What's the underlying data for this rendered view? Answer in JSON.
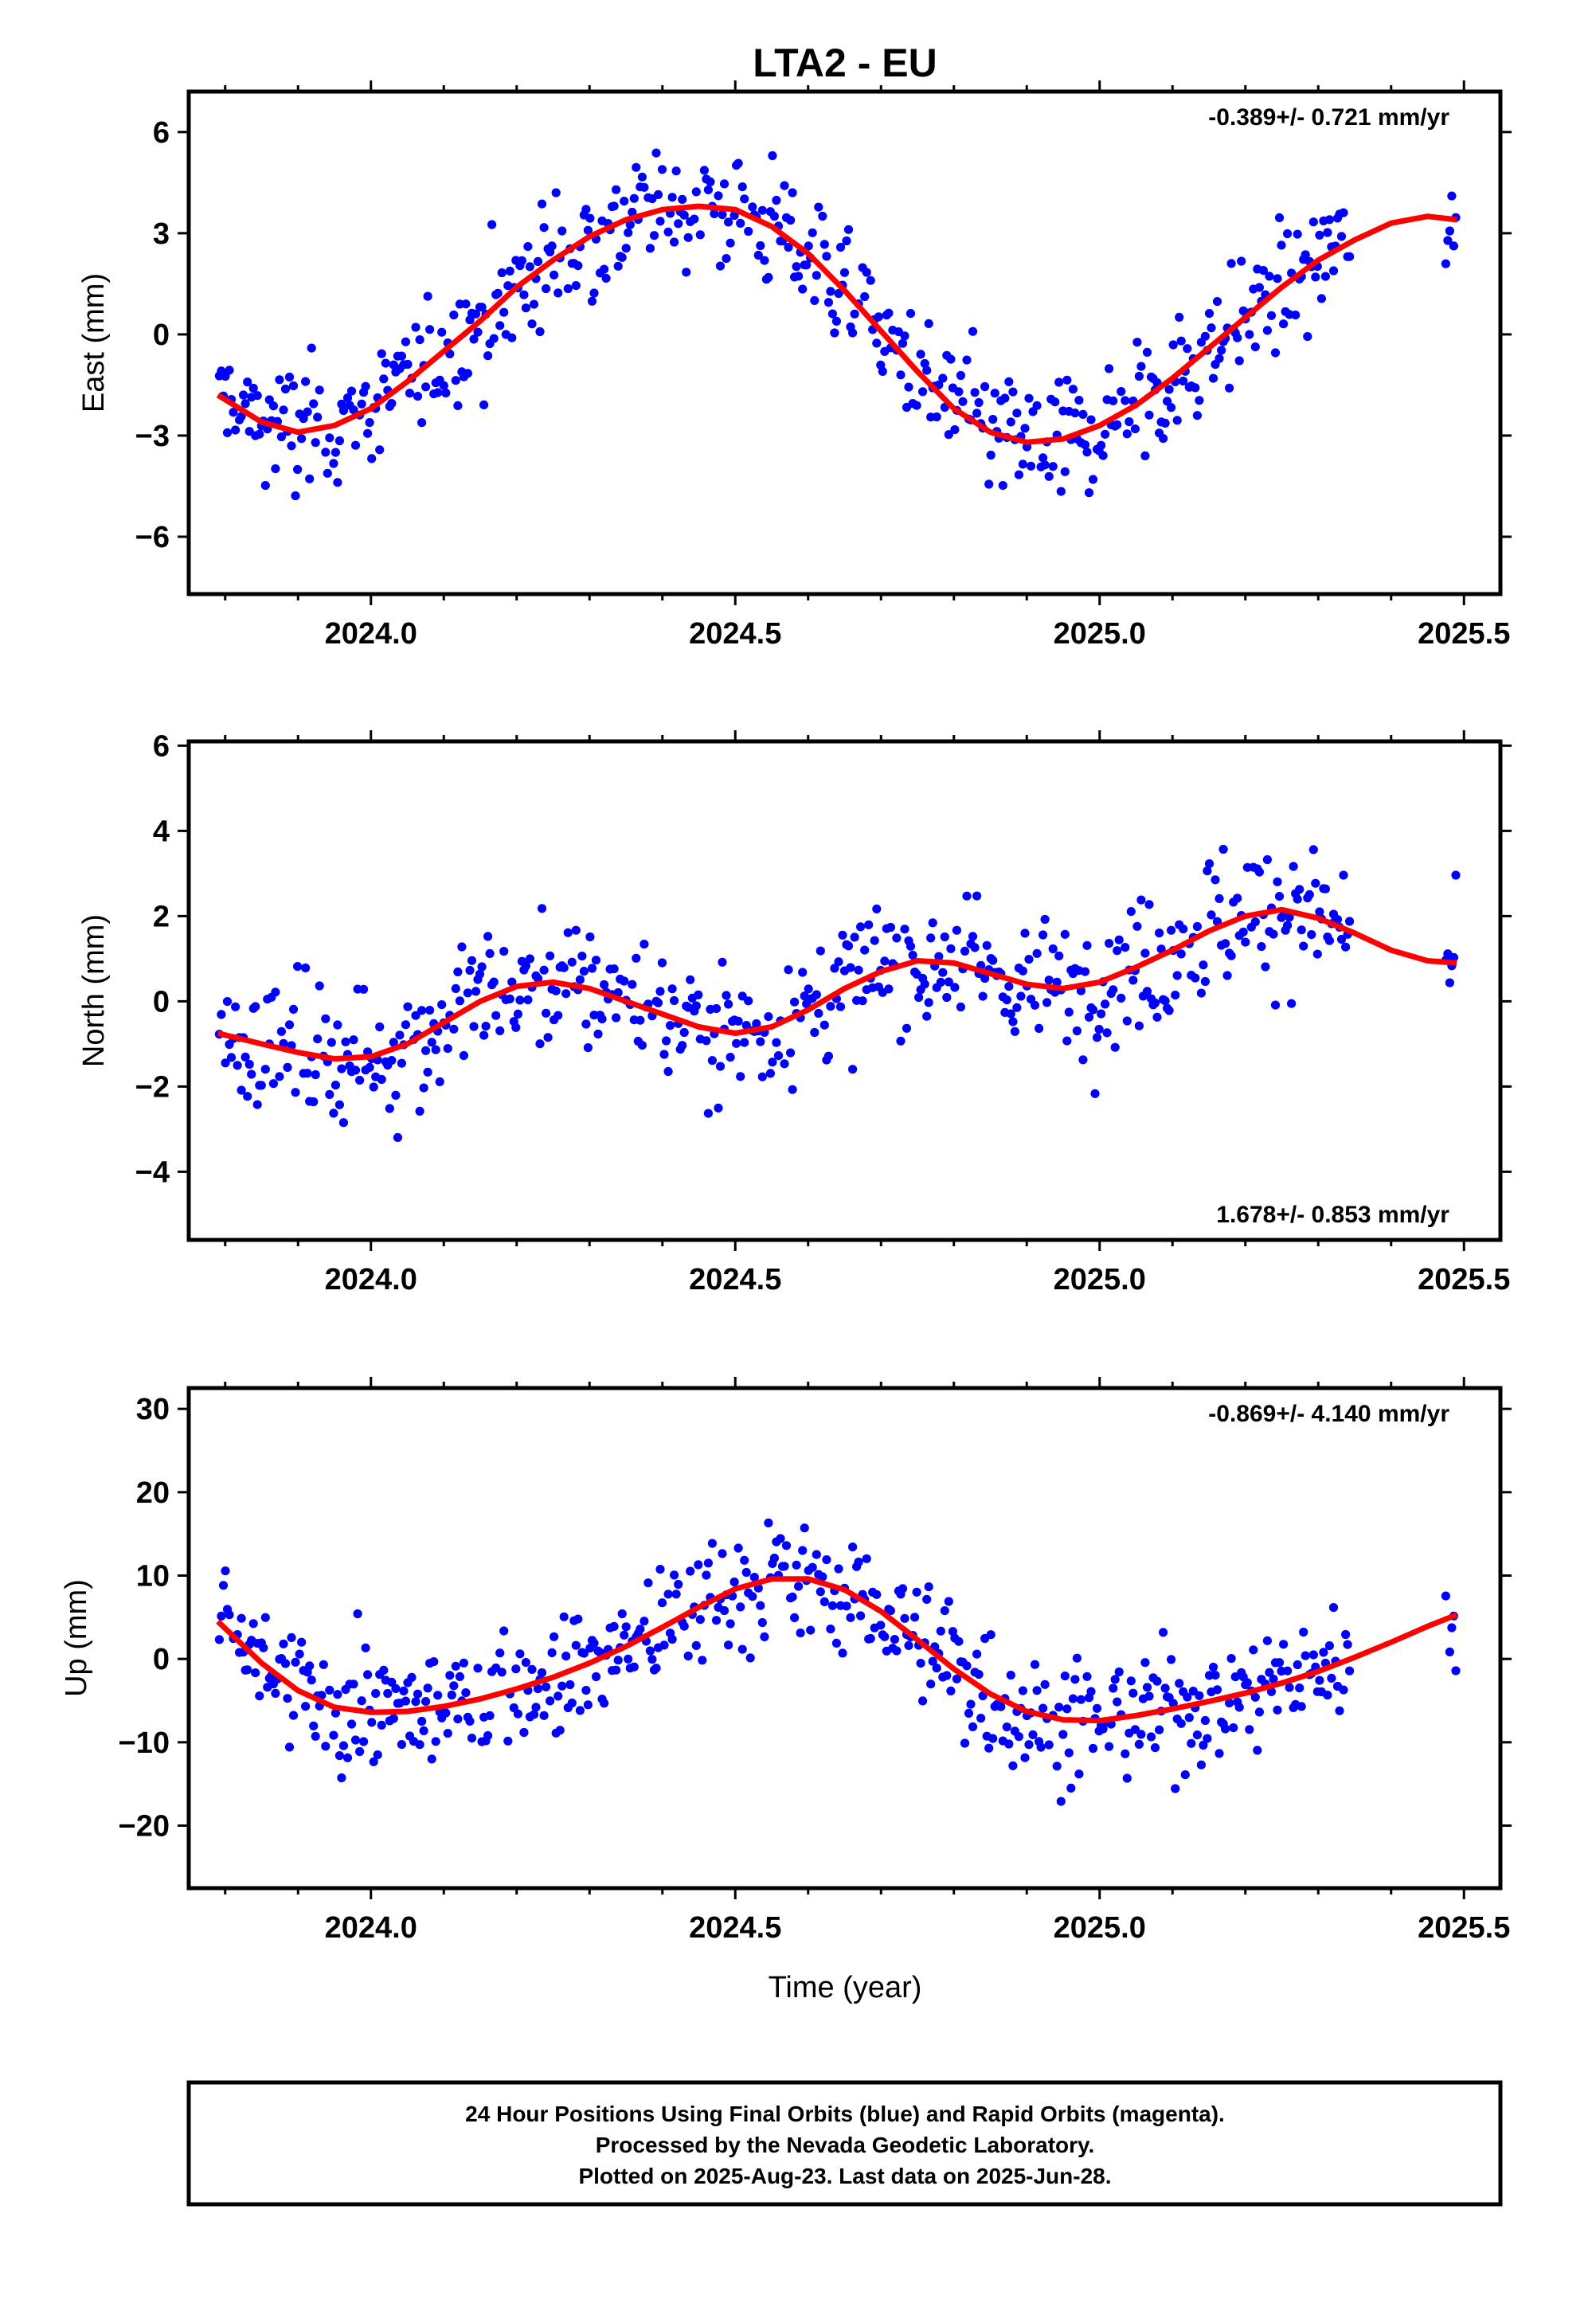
{
  "title": "LTA2 - EU",
  "colors": {
    "points": "#0000ff",
    "fit": "#ff0000",
    "frame": "#000000"
  },
  "x_axis": {
    "label": "Time (year)",
    "range": [
      2023.75,
      2025.55
    ],
    "major_ticks": [
      2024.0,
      2024.5,
      2025.0,
      2025.5
    ],
    "tick_labels": [
      "2024.0",
      "2024.5",
      "2025.0",
      "2025.5"
    ],
    "minor_step": 0.1
  },
  "footer": {
    "line1": "24 Hour Positions Using Final Orbits (blue) and Rapid Orbits (magenta).",
    "line2": "Processed by the Nevada Geodetic Laboratory.",
    "line3": "Plotted on 2025-Aug-23. Last data on 2025-Jun-28."
  },
  "chart_data": [
    {
      "type": "scatter",
      "id": "east",
      "ylabel": "East (mm)",
      "ylim": [
        -7.7,
        7.2
      ],
      "yticks": [
        -6,
        -3,
        0,
        3,
        6
      ],
      "ytick_labels": [
        "−6",
        "−3",
        "0",
        "3",
        "6"
      ],
      "rate_label": "-0.389+/- 0.721 mm/yr",
      "rate_position": "top-right",
      "fit_name": "",
      "fit": {
        "x": [
          2023.79,
          2023.85,
          2023.9,
          2023.95,
          2024.0,
          2024.05,
          2024.1,
          2024.15,
          2024.2,
          2024.25,
          2024.3,
          2024.35,
          2024.4,
          2024.45,
          2024.5,
          2024.55,
          2024.6,
          2024.65,
          2024.7,
          2024.75,
          2024.8,
          2024.85,
          2024.9,
          2024.95,
          2025.0,
          2025.05,
          2025.1,
          2025.15,
          2025.2,
          2025.25,
          2025.3,
          2025.35,
          2025.4,
          2025.45,
          2025.49
        ],
        "y": [
          -1.8,
          -2.6,
          -2.9,
          -2.7,
          -2.2,
          -1.4,
          -0.5,
          0.4,
          1.4,
          2.2,
          2.9,
          3.4,
          3.7,
          3.8,
          3.7,
          3.2,
          2.4,
          1.3,
          0.1,
          -1.1,
          -2.2,
          -2.9,
          -3.2,
          -3.1,
          -2.7,
          -2.1,
          -1.3,
          -0.4,
          0.5,
          1.4,
          2.2,
          2.8,
          3.3,
          3.5,
          3.4
        ]
      }
    },
    {
      "type": "scatter",
      "id": "north",
      "ylabel": "North (mm)",
      "ylim": [
        -5.6,
        6.1
      ],
      "yticks": [
        -4,
        -2,
        0,
        2,
        4,
        6
      ],
      "ytick_labels": [
        "−4",
        "−2",
        "0",
        "2",
        "4",
        "6"
      ],
      "rate_label": "1.678+/- 0.853 mm/yr",
      "rate_position": "bottom-right",
      "fit_name": "",
      "fit": {
        "x": [
          2023.79,
          2023.85,
          2023.9,
          2023.95,
          2024.0,
          2024.05,
          2024.1,
          2024.15,
          2024.2,
          2024.25,
          2024.3,
          2024.35,
          2024.4,
          2024.45,
          2024.5,
          2024.55,
          2024.6,
          2024.65,
          2024.7,
          2024.75,
          2024.8,
          2024.85,
          2024.9,
          2024.95,
          2025.0,
          2025.05,
          2025.1,
          2025.15,
          2025.2,
          2025.25,
          2025.3,
          2025.35,
          2025.4,
          2025.45,
          2025.49
        ],
        "y": [
          -0.75,
          -1.0,
          -1.2,
          -1.35,
          -1.3,
          -1.0,
          -0.5,
          0.0,
          0.35,
          0.45,
          0.3,
          0.0,
          -0.3,
          -0.6,
          -0.75,
          -0.6,
          -0.2,
          0.3,
          0.7,
          0.95,
          0.9,
          0.65,
          0.4,
          0.3,
          0.45,
          0.8,
          1.2,
          1.65,
          2.0,
          2.15,
          1.95,
          1.6,
          1.2,
          0.95,
          0.9
        ]
      }
    },
    {
      "type": "scatter",
      "id": "up",
      "ylabel": "Up (mm)",
      "ylim": [
        -27.5,
        32.5
      ],
      "yticks": [
        -20,
        -10,
        0,
        10,
        20,
        30
      ],
      "ytick_labels": [
        "−20",
        "−10",
        "0",
        "10",
        "20",
        "30"
      ],
      "rate_label": "-0.869+/- 4.140 mm/yr",
      "rate_position": "top-right",
      "fit_name": "",
      "fit": {
        "x": [
          2023.79,
          2023.85,
          2023.9,
          2023.95,
          2024.0,
          2024.05,
          2024.1,
          2024.15,
          2024.2,
          2024.25,
          2024.3,
          2024.35,
          2024.4,
          2024.45,
          2024.5,
          2024.55,
          2024.6,
          2024.65,
          2024.7,
          2024.75,
          2024.8,
          2024.85,
          2024.9,
          2024.95,
          2025.0,
          2025.05,
          2025.1,
          2025.15,
          2025.2,
          2025.25,
          2025.3,
          2025.35,
          2025.4,
          2025.45,
          2025.49
        ],
        "y": [
          4.5,
          -0.5,
          -3.8,
          -5.8,
          -6.4,
          -6.3,
          -5.7,
          -4.8,
          -3.6,
          -2.2,
          -0.5,
          1.5,
          3.8,
          6.2,
          8.4,
          9.6,
          9.6,
          8.3,
          5.7,
          2.3,
          -1.2,
          -4.2,
          -6.3,
          -7.3,
          -7.4,
          -6.8,
          -6.0,
          -5.1,
          -4.1,
          -2.9,
          -1.5,
          0.2,
          2.0,
          3.9,
          5.3
        ]
      }
    }
  ]
}
